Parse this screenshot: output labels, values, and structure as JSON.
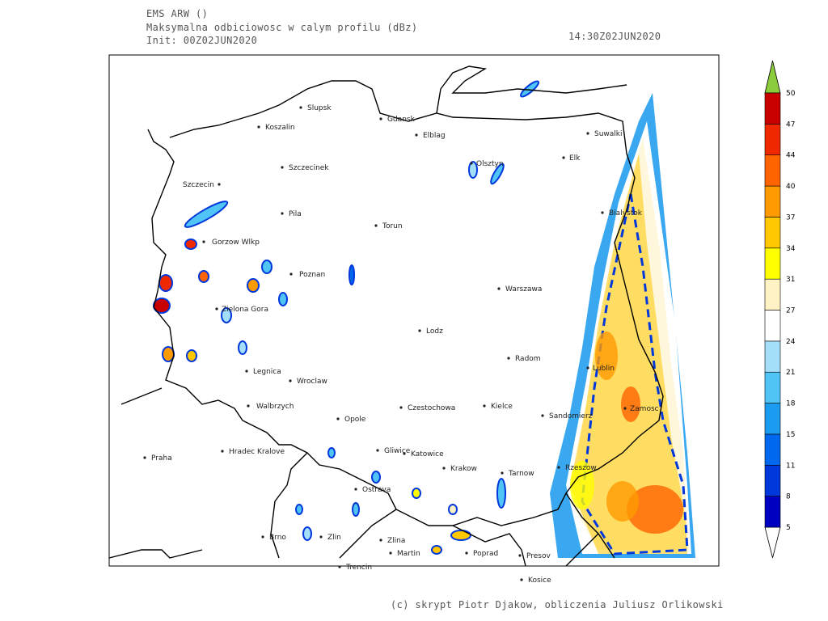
{
  "header": {
    "model": "EMS ARW ()",
    "title": "Maksymalna odbiciowosc w calym profilu (dBz)",
    "init": "Init: 00Z02JUN2020",
    "valid": "14:30Z02JUN2020"
  },
  "cities": [
    "Slupsk",
    "Koszalin",
    "Gdansk",
    "Elblag",
    "Suwalki",
    "Olsztyn",
    "Elk",
    "Szczecinek",
    "Szczecin",
    "Pila",
    "Torun",
    "Bialystok",
    "Gorzow Wlkp",
    "Poznan",
    "Warszawa",
    "Zielona Gora",
    "Lodz",
    "Radom",
    "Lublin",
    "Legnica",
    "Wroclaw",
    "Kielce",
    "Czestochowa",
    "Walbrzych",
    "Opole",
    "Sandomierz",
    "Zamosc",
    "Praha",
    "Hradec Kralove",
    "Gliwice",
    "Katowice",
    "Krakow",
    "Tarnow",
    "Rzeszow",
    "Ostrava",
    "Brno",
    "Zlin",
    "Zlina",
    "Martin",
    "Poprad",
    "Presov",
    "Trencin",
    "Kosice"
  ],
  "colorbar": {
    "ticks": [
      5,
      8,
      11,
      15,
      18,
      21,
      24,
      27,
      31,
      34,
      37,
      40,
      44,
      47,
      50
    ],
    "colors": [
      "#0000c0",
      "#0038dc",
      "#0068ee",
      "#1c9cf0",
      "#50c4f4",
      "#a4def8",
      "#ffffff",
      "#fff2c4",
      "#ffff00",
      "#ffc800",
      "#ff9a00",
      "#ff6400",
      "#f02800",
      "#c80000"
    ],
    "under_color": "#ffffff",
    "over_color": "#8ccc3c"
  },
  "credit": "(c) skrypt Piotr Djakow, obliczenia Juliusz Orlikowski"
}
